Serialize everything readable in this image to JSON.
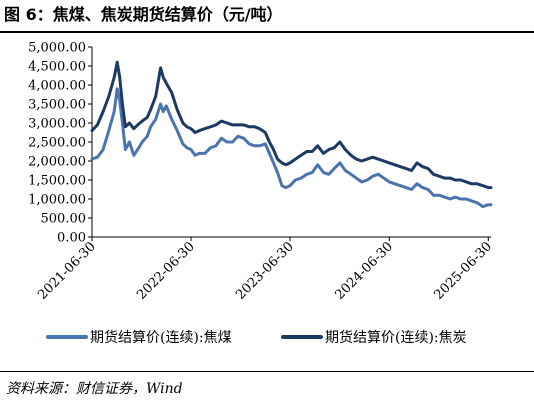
{
  "figure": {
    "title": "图 6：焦煤、焦炭期货结算价（元/吨）",
    "source": "资料来源：财信证券，Wind"
  },
  "chart_data": {
    "type": "line",
    "title": "",
    "xlabel": "",
    "ylabel": "",
    "ylim": [
      0,
      5000
    ],
    "yticks": [
      "5,000.00",
      "4,500.00",
      "4,000.00",
      "3,500.00",
      "3,000.00",
      "2,500.00",
      "2,000.00",
      "1,500.00",
      "1,000.00",
      "500.00",
      "0.00"
    ],
    "xticks": [
      "2021-06-30",
      "2022-06-30",
      "2023-06-30",
      "2024-06-30",
      "2025-06-30"
    ],
    "xlim": [
      "2021-06-30",
      "2025-07-10"
    ],
    "grid": false,
    "legend_position": "bottom",
    "colors": {
      "coking_coal": "#4a74ad",
      "coke": "#1c3a63"
    },
    "series": [
      {
        "name": "期货结算价(连续):焦煤",
        "dates": [
          "2021-06-30",
          "2021-07-20",
          "2021-08-10",
          "2021-08-31",
          "2021-09-20",
          "2021-10-01",
          "2021-10-10",
          "2021-10-20",
          "2021-10-31",
          "2021-11-15",
          "2021-12-01",
          "2021-12-15",
          "2022-01-01",
          "2022-01-20",
          "2022-02-01",
          "2022-02-20",
          "2022-03-10",
          "2022-03-20",
          "2022-03-31",
          "2022-04-20",
          "2022-05-10",
          "2022-05-31",
          "2022-06-15",
          "2022-06-30",
          "2022-07-15",
          "2022-07-31",
          "2022-08-20",
          "2022-09-10",
          "2022-09-30",
          "2022-10-20",
          "2022-11-10",
          "2022-11-30",
          "2022-12-20",
          "2023-01-10",
          "2023-01-31",
          "2023-02-20",
          "2023-03-10",
          "2023-03-31",
          "2023-04-15",
          "2023-04-30",
          "2023-05-15",
          "2023-05-31",
          "2023-06-15",
          "2023-06-30",
          "2023-07-20",
          "2023-08-10",
          "2023-08-31",
          "2023-09-20",
          "2023-10-10",
          "2023-10-31",
          "2023-11-20",
          "2023-12-10",
          "2023-12-31",
          "2024-01-20",
          "2024-02-10",
          "2024-02-29",
          "2024-03-20",
          "2024-04-10",
          "2024-04-30",
          "2024-05-20",
          "2024-06-10",
          "2024-06-30",
          "2024-07-20",
          "2024-08-10",
          "2024-08-31",
          "2024-09-20",
          "2024-10-10",
          "2024-10-31",
          "2024-11-20",
          "2024-12-10",
          "2024-12-31",
          "2025-01-20",
          "2025-02-10",
          "2025-02-28",
          "2025-03-20",
          "2025-04-10",
          "2025-04-30",
          "2025-05-20",
          "2025-06-10",
          "2025-06-30",
          "2025-07-10"
        ],
        "values": [
          2050,
          2100,
          2300,
          2800,
          3300,
          3900,
          3600,
          3000,
          2300,
          2500,
          2150,
          2300,
          2500,
          2650,
          2900,
          3100,
          3500,
          3300,
          3450,
          3100,
          2800,
          2450,
          2350,
          2300,
          2150,
          2200,
          2200,
          2350,
          2400,
          2600,
          2500,
          2500,
          2650,
          2600,
          2450,
          2400,
          2400,
          2450,
          2200,
          1950,
          1700,
          1350,
          1300,
          1350,
          1500,
          1550,
          1650,
          1700,
          1900,
          1700,
          1650,
          1800,
          1950,
          1750,
          1650,
          1550,
          1450,
          1500,
          1600,
          1650,
          1550,
          1450,
          1400,
          1350,
          1300,
          1250,
          1400,
          1300,
          1250,
          1100,
          1100,
          1050,
          1000,
          1050,
          1000,
          1000,
          950,
          900,
          800,
          850,
          850
        ]
      },
      {
        "name": "期货结算价(连续):焦炭",
        "dates": [
          "2021-06-30",
          "2021-07-20",
          "2021-08-10",
          "2021-08-31",
          "2021-09-20",
          "2021-10-01",
          "2021-10-10",
          "2021-10-20",
          "2021-10-31",
          "2021-11-15",
          "2021-12-01",
          "2021-12-15",
          "2022-01-01",
          "2022-01-20",
          "2022-02-01",
          "2022-02-20",
          "2022-03-10",
          "2022-03-20",
          "2022-03-31",
          "2022-04-20",
          "2022-05-10",
          "2022-05-31",
          "2022-06-15",
          "2022-06-30",
          "2022-07-15",
          "2022-07-31",
          "2022-08-20",
          "2022-09-10",
          "2022-09-30",
          "2022-10-20",
          "2022-11-10",
          "2022-11-30",
          "2022-12-20",
          "2023-01-10",
          "2023-01-31",
          "2023-02-20",
          "2023-03-10",
          "2023-03-31",
          "2023-04-15",
          "2023-04-30",
          "2023-05-15",
          "2023-05-31",
          "2023-06-15",
          "2023-06-30",
          "2023-07-20",
          "2023-08-10",
          "2023-08-31",
          "2023-09-20",
          "2023-10-10",
          "2023-10-31",
          "2023-11-20",
          "2023-12-10",
          "2023-12-31",
          "2024-01-20",
          "2024-02-10",
          "2024-02-29",
          "2024-03-20",
          "2024-04-10",
          "2024-04-30",
          "2024-05-20",
          "2024-06-10",
          "2024-06-30",
          "2024-07-20",
          "2024-08-10",
          "2024-08-31",
          "2024-09-20",
          "2024-10-10",
          "2024-10-31",
          "2024-11-20",
          "2024-12-10",
          "2024-12-31",
          "2025-01-20",
          "2025-02-10",
          "2025-02-28",
          "2025-03-20",
          "2025-04-10",
          "2025-04-30",
          "2025-05-20",
          "2025-06-10",
          "2025-06-30",
          "2025-07-10"
        ],
        "values": [
          2800,
          2950,
          3300,
          3700,
          4200,
          4600,
          4200,
          3500,
          2900,
          3000,
          2850,
          2950,
          3050,
          3150,
          3350,
          3700,
          4450,
          4200,
          4050,
          3800,
          3350,
          3000,
          2900,
          2850,
          2750,
          2800,
          2850,
          2900,
          2950,
          3050,
          3000,
          2950,
          2950,
          2950,
          2900,
          2900,
          2850,
          2750,
          2500,
          2300,
          2050,
          1950,
          1900,
          1950,
          2050,
          2150,
          2250,
          2250,
          2400,
          2200,
          2300,
          2350,
          2500,
          2300,
          2150,
          2050,
          2000,
          2050,
          2100,
          2050,
          2000,
          1950,
          1900,
          1850,
          1800,
          1750,
          1950,
          1850,
          1800,
          1650,
          1600,
          1550,
          1550,
          1500,
          1500,
          1450,
          1400,
          1400,
          1350,
          1300,
          1300
        ]
      }
    ]
  }
}
